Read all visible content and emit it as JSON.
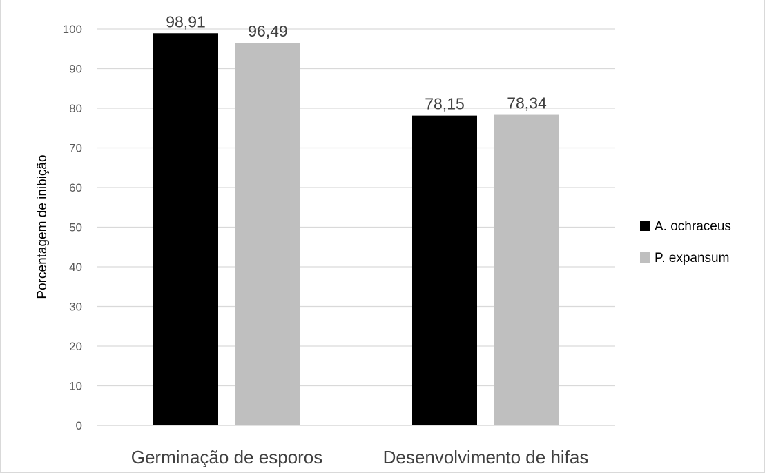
{
  "chart_data": {
    "type": "bar",
    "categories": [
      "Germinação de esporos",
      "Desenvolvimento de hifas"
    ],
    "series": [
      {
        "name": "A. ochraceus",
        "values": [
          98.91,
          78.15
        ],
        "labels": [
          "98,91",
          "78,15"
        ],
        "color": "#000000"
      },
      {
        "name": "P. expansum",
        "values": [
          96.49,
          78.34
        ],
        "labels": [
          "96,49",
          "78,34"
        ],
        "color": "#bfbfbf"
      }
    ],
    "title": "",
    "xlabel": "",
    "ylabel": "Porcentagem de inibição",
    "ylim": [
      0,
      100
    ],
    "yticks": [
      0,
      10,
      20,
      30,
      40,
      50,
      60,
      70,
      80,
      90,
      100
    ],
    "grid": true,
    "legend": "right"
  },
  "colors": {
    "gridline": "#d9d9d9",
    "axis": "#d9d9d9"
  }
}
